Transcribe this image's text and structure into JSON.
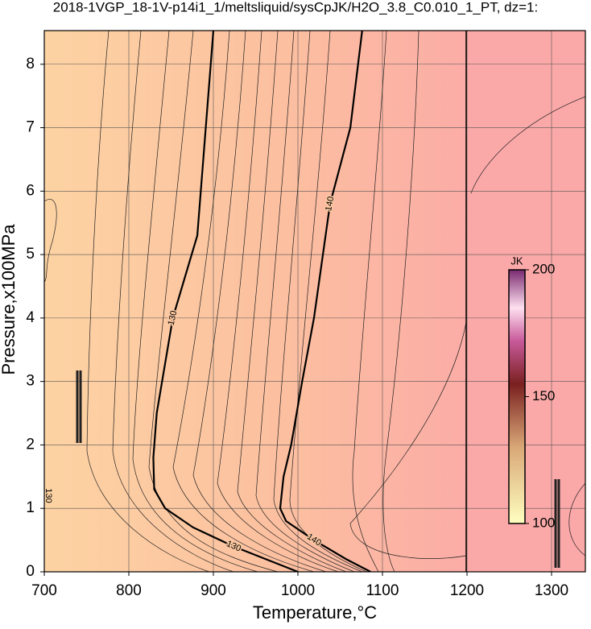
{
  "chart_data": {
    "type": "contour",
    "title": "2018-1VGP_18-1V-p14i1_1/meltsliquid/sysCpJK/H2O_3.8_C0.010_1_PT, dz=1:",
    "x_label": "Temperature,°C",
    "y_label": "Pressure,x100MPa",
    "xlim": [
      700,
      1340
    ],
    "ylim": [
      0,
      8.53
    ],
    "xticks": [
      700,
      800,
      900,
      1000,
      1100,
      1200,
      1300
    ],
    "yticks": [
      0,
      1,
      2,
      3,
      4,
      5,
      6,
      7,
      8
    ],
    "grid": true,
    "contours": [
      {
        "level": 130,
        "x": [
          1000,
          962,
          924,
          876,
          843,
          830,
          829,
          833,
          852,
          881,
          900
        ],
        "y": [
          0,
          0.2,
          0.4,
          0.7,
          1.0,
          1.3,
          1.8,
          2.5,
          4,
          5.3,
          8.53
        ]
      },
      {
        "level": 140,
        "x": [
          1086,
          1057,
          1019,
          986,
          979,
          983,
          992,
          1005,
          1019,
          1038,
          1062,
          1076
        ],
        "y": [
          0,
          0.2,
          0.5,
          0.8,
          1.0,
          1.5,
          2,
          3,
          4,
          5.8,
          7,
          8.53
        ]
      }
    ],
    "colorbar": {
      "label": "JK",
      "clim": [
        100,
        200
      ],
      "ticks": [
        100,
        150,
        200
      ]
    }
  }
}
